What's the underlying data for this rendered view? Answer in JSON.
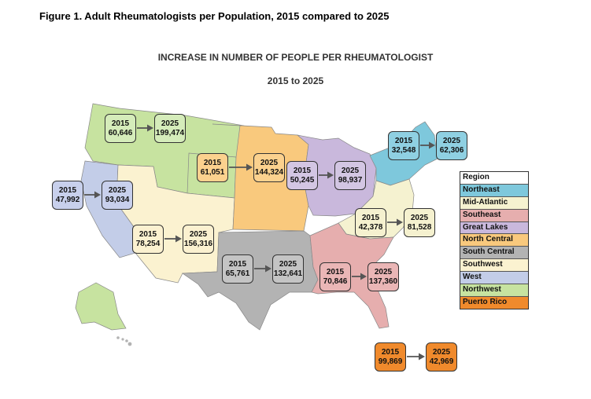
{
  "figure_title": "Figure 1.  Adult Rheumatologists per Population, 2015  compared to 2025",
  "main_title": "INCREASE IN NUMBER OF PEOPLE PER RHEUMATOLOGIST",
  "subtitle": "2015 to 2025",
  "legend": {
    "header": "Region",
    "items": [
      {
        "name": "Northeast",
        "color": "#7ec8dc"
      },
      {
        "name": "Mid-Atlantic",
        "color": "#f5f2d0"
      },
      {
        "name": "Southeast",
        "color": "#e6aeae"
      },
      {
        "name": "Great Lakes",
        "color": "#c9b8dc"
      },
      {
        "name": "North Central",
        "color": "#f9c97d"
      },
      {
        "name": "South Central",
        "color": "#b3b3b3"
      },
      {
        "name": "Southwest",
        "color": "#fbf2d0"
      },
      {
        "name": "West",
        "color": "#c3cde8"
      },
      {
        "name": "Northwest",
        "color": "#c7e3a0"
      },
      {
        "name": "Puerto Rico",
        "color": "#f08a2c"
      }
    ]
  },
  "regions": [
    {
      "name": "Northwest",
      "y2015_label": "2015",
      "v2015": "60,646",
      "y2025_label": "2025",
      "v2025": "199,474",
      "color": "#d5ecba"
    },
    {
      "name": "North Central",
      "y2015_label": "2015",
      "v2015": "61,051",
      "y2025_label": "2025",
      "v2025": "144,324",
      "color": "#fbd18e"
    },
    {
      "name": "Great Lakes",
      "y2015_label": "2015",
      "v2015": "50,245",
      "y2025_label": "2025",
      "v2025": "98,937",
      "color": "#d3c6e3"
    },
    {
      "name": "Northeast",
      "y2015_label": "2015",
      "v2015": "32,548",
      "y2025_label": "2025",
      "v2025": "62,306",
      "color": "#8fd0e2"
    },
    {
      "name": "West",
      "y2015_label": "2015",
      "v2015": "47,992",
      "y2025_label": "2025",
      "v2025": "93,034",
      "color": "#c8d0ec"
    },
    {
      "name": "Mid-Atlantic",
      "y2015_label": "2015",
      "v2015": "42,378",
      "y2025_label": "2025",
      "v2025": "81,528",
      "color": "#f5f1cf"
    },
    {
      "name": "Southwest",
      "y2015_label": "2015",
      "v2015": "78,254",
      "y2025_label": "2025",
      "v2025": "156,316",
      "color": "#fbf1d0"
    },
    {
      "name": "South Central",
      "y2015_label": "2015",
      "v2015": "65,761",
      "y2025_label": "2025",
      "v2025": "132,641",
      "color": "#c4c4c4"
    },
    {
      "name": "Southeast",
      "y2015_label": "2015",
      "v2015": "70,846",
      "y2025_label": "2025",
      "v2025": "137,360",
      "color": "#eab6b6"
    },
    {
      "name": "Puerto Rico",
      "y2015_label": "2015",
      "v2015": "99,869",
      "y2025_label": "2025",
      "v2025": "42,969",
      "color": "#f08a2c"
    }
  ]
}
